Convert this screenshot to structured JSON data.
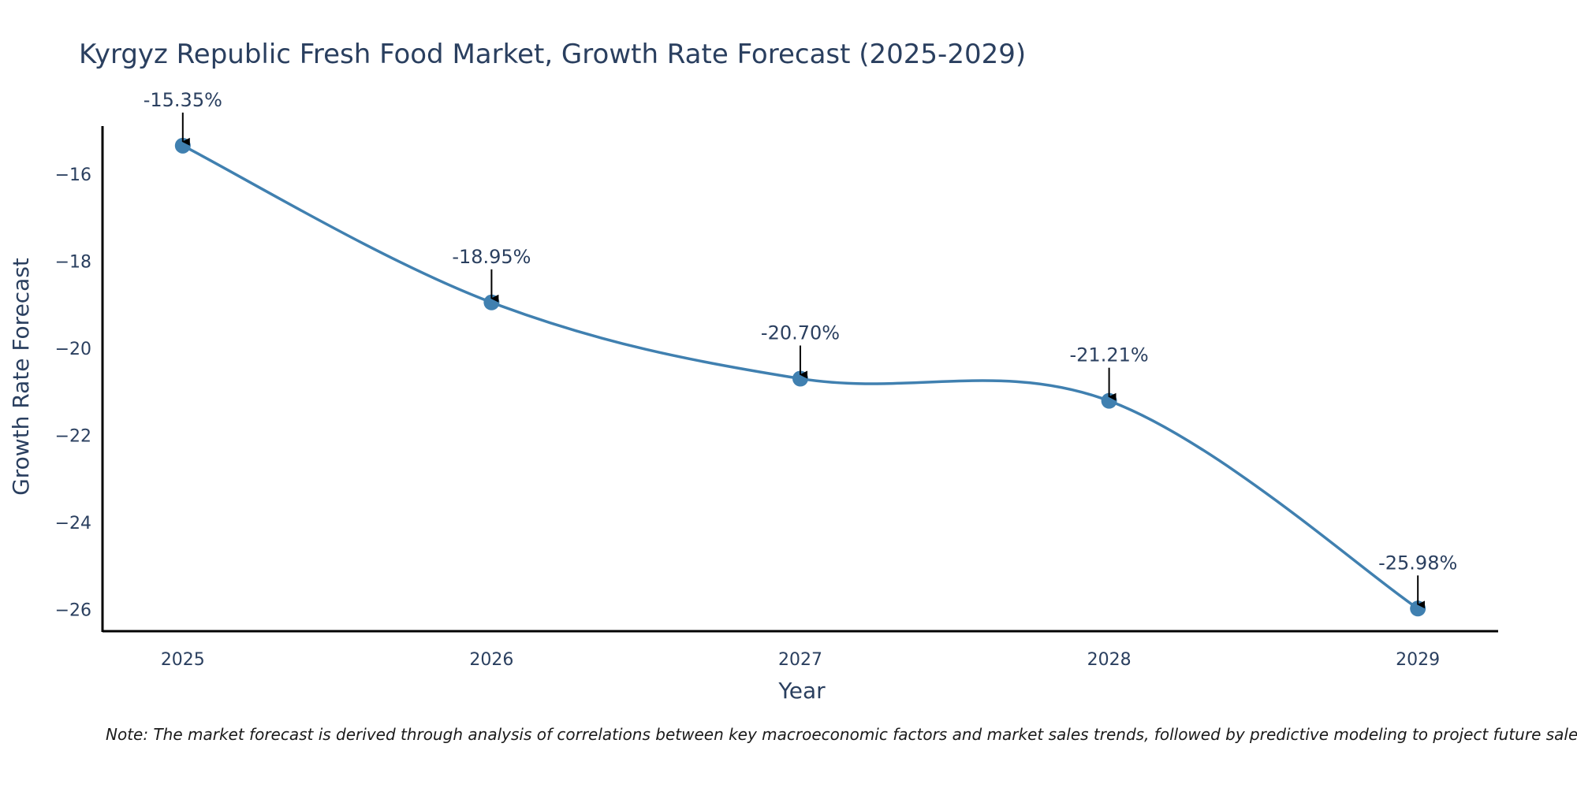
{
  "chart_data": {
    "type": "line",
    "title": "Kyrgyz Republic Fresh Food Market, Growth Rate Forecast (2025-2029)",
    "xlabel": "Year",
    "ylabel": "Growth Rate Forecast",
    "x": [
      2025,
      2026,
      2027,
      2028,
      2029
    ],
    "categories": [
      "2025",
      "2026",
      "2027",
      "2028",
      "2029"
    ],
    "series": [
      {
        "name": "Growth Rate Forecast",
        "values": [
          -15.35,
          -18.95,
          -20.7,
          -21.21,
          -25.98
        ],
        "color": "#4080b0"
      }
    ],
    "annotations": [
      "-15.35%",
      "-18.95%",
      "-20.70%",
      "-21.21%",
      "-25.98%"
    ],
    "yticks": [
      -16,
      -18,
      -20,
      -22,
      -24,
      -26
    ],
    "ytick_labels": [
      "−16",
      "−18",
      "−20",
      "−22",
      "−24",
      "−26"
    ],
    "ylim": [
      -26.5,
      -14.9
    ],
    "xlim": [
      2024.74,
      2029.26
    ],
    "grid": false,
    "line_shape": "spline"
  },
  "note": "Note: The market forecast is derived through analysis of correlations between key macroeconomic factors and market sales trends, followed by predictive modeling to project future sales.",
  "colors": {
    "line": "#4080b0",
    "text": "#2a3f5f",
    "axis": "#000000"
  }
}
